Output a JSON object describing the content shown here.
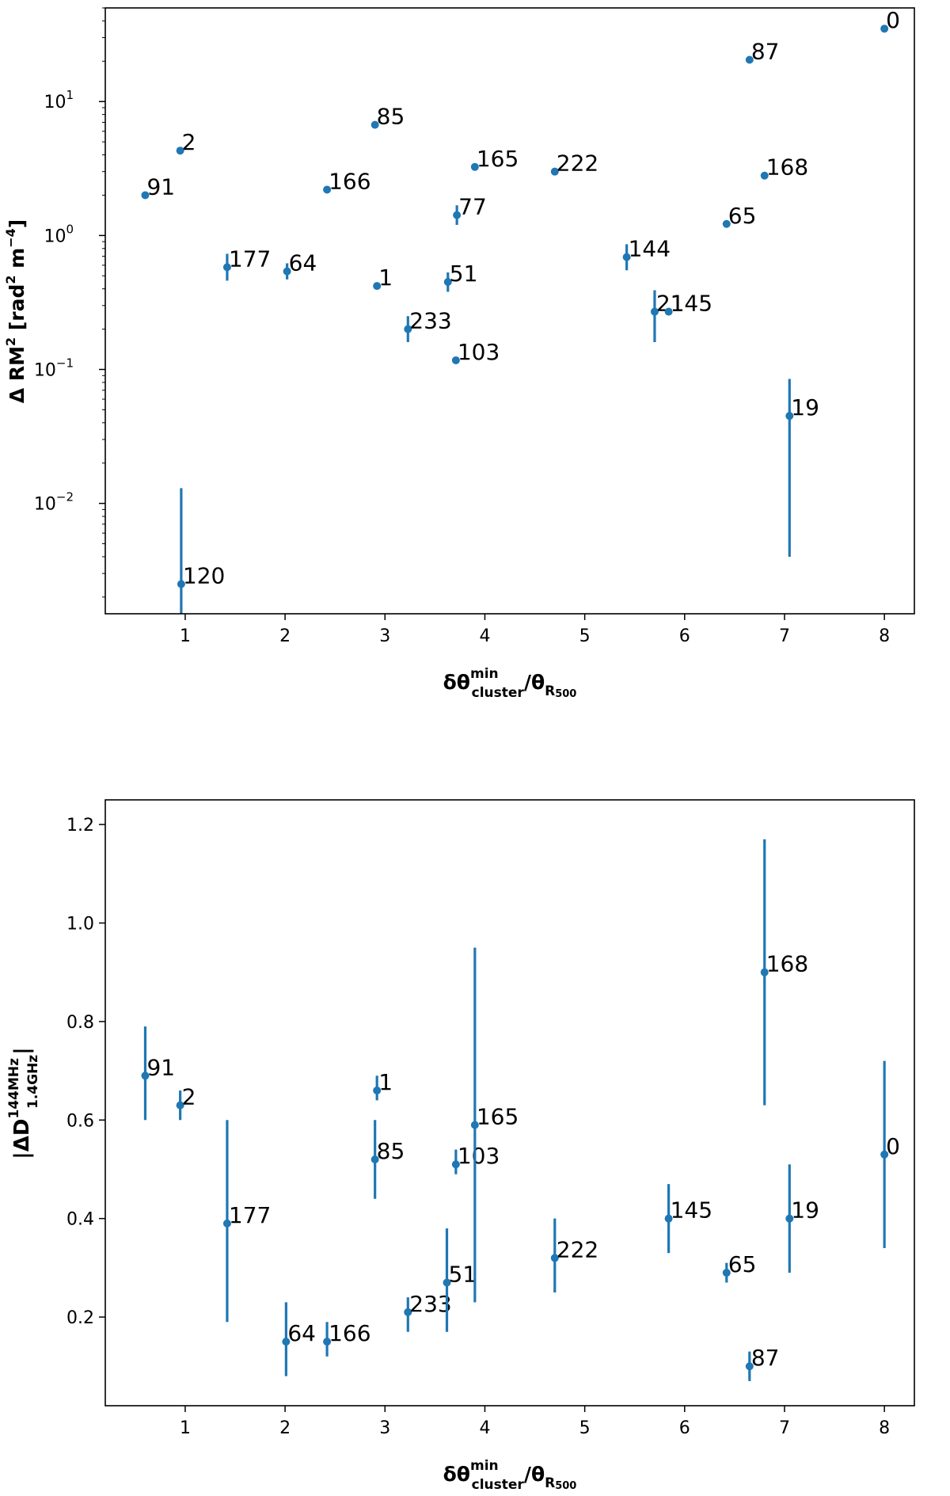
{
  "chart_data": [
    {
      "type": "scatter",
      "scale": "log",
      "title": "",
      "xlabel": {
        "main": "δθ",
        "sup": "min",
        "sub": "cluster",
        "slash": "/θ",
        "sub2": "R",
        "sub3": "500"
      },
      "ylabel": {
        "prefix": "Δ RM",
        "sup1": "2",
        "mid": " [rad",
        "sup2": "2",
        "mid2": " m",
        "sup3": "−4",
        "suffix": "]"
      },
      "xlim": [
        0.2,
        8.3
      ],
      "ylim": [
        0.0015,
        50
      ],
      "xticks": [
        {
          "value": 1,
          "label": "1"
        },
        {
          "value": 2,
          "label": "2"
        },
        {
          "value": 3,
          "label": "3"
        },
        {
          "value": 4,
          "label": "4"
        },
        {
          "value": 5,
          "label": "5"
        },
        {
          "value": 6,
          "label": "6"
        },
        {
          "value": 7,
          "label": "7"
        },
        {
          "value": 8,
          "label": "8"
        }
      ],
      "yticks": [
        {
          "value": 0.01,
          "base": "10",
          "exp": "−2"
        },
        {
          "value": 0.1,
          "base": "10",
          "exp": "−1"
        },
        {
          "value": 1,
          "base": "10",
          "exp": "0"
        },
        {
          "value": 10,
          "base": "10",
          "exp": "1"
        }
      ],
      "points": [
        {
          "label": "0",
          "x": 8.0,
          "y": 35,
          "lo": 35,
          "hi": 35
        },
        {
          "label": "87",
          "x": 6.65,
          "y": 20.5,
          "lo": 20.5,
          "hi": 20.5
        },
        {
          "label": "85",
          "x": 2.9,
          "y": 6.7,
          "lo": 6.7,
          "hi": 6.7
        },
        {
          "label": "2",
          "x": 0.95,
          "y": 4.3,
          "lo": 4.3,
          "hi": 4.3
        },
        {
          "label": "165",
          "x": 3.9,
          "y": 3.25,
          "lo": 3.25,
          "hi": 3.25
        },
        {
          "label": "222",
          "x": 4.7,
          "y": 3.0,
          "lo": 3.0,
          "hi": 3.0
        },
        {
          "label": "168",
          "x": 6.8,
          "y": 2.8,
          "lo": 2.8,
          "hi": 2.8
        },
        {
          "label": "166",
          "x": 2.42,
          "y": 2.2,
          "lo": 2.2,
          "hi": 2.2
        },
        {
          "label": "91",
          "x": 0.6,
          "y": 2.0,
          "lo": 2.0,
          "hi": 2.0
        },
        {
          "label": "77",
          "x": 3.72,
          "y": 1.42,
          "lo": 1.2,
          "hi": 1.68
        },
        {
          "label": "65",
          "x": 6.42,
          "y": 1.22,
          "lo": 1.22,
          "hi": 1.22
        },
        {
          "label": "144",
          "x": 5.42,
          "y": 0.69,
          "lo": 0.55,
          "hi": 0.86
        },
        {
          "label": "177",
          "x": 1.42,
          "y": 0.58,
          "lo": 0.46,
          "hi": 0.73
        },
        {
          "label": "64",
          "x": 2.02,
          "y": 0.54,
          "lo": 0.47,
          "hi": 0.62
        },
        {
          "label": "51",
          "x": 3.63,
          "y": 0.45,
          "lo": 0.38,
          "hi": 0.53
        },
        {
          "label": "1",
          "x": 2.92,
          "y": 0.42,
          "lo": 0.42,
          "hi": 0.42
        },
        {
          "label": "21",
          "x": 5.7,
          "y": 0.27,
          "lo": 0.16,
          "hi": 0.39
        },
        {
          "label": "145",
          "x": 5.84,
          "y": 0.27,
          "lo": 0.27,
          "hi": 0.27
        },
        {
          "label": "233",
          "x": 3.23,
          "y": 0.2,
          "lo": 0.16,
          "hi": 0.25
        },
        {
          "label": "103",
          "x": 3.71,
          "y": 0.117,
          "lo": 0.117,
          "hi": 0.117
        },
        {
          "label": "19",
          "x": 7.05,
          "y": 0.045,
          "lo": 0.004,
          "hi": 0.085
        },
        {
          "label": "120",
          "x": 0.96,
          "y": 0.0025,
          "lo": 0.0015,
          "hi": 0.013
        }
      ]
    },
    {
      "type": "scatter",
      "scale": "linear",
      "title": "",
      "xlabel": {
        "main": "δθ",
        "sup": "min",
        "sub": "cluster",
        "slash": "/θ",
        "sub2": "R",
        "sub3": "500"
      },
      "ylabel": {
        "prefix": "|ΔD",
        "sup": "144MHz",
        "sub": "1.4GHz",
        "suffix": "|"
      },
      "xlim": [
        0.2,
        8.3
      ],
      "ylim": [
        0.02,
        1.25
      ],
      "xticks": [
        {
          "value": 1,
          "label": "1"
        },
        {
          "value": 2,
          "label": "2"
        },
        {
          "value": 3,
          "label": "3"
        },
        {
          "value": 4,
          "label": "4"
        },
        {
          "value": 5,
          "label": "5"
        },
        {
          "value": 6,
          "label": "6"
        },
        {
          "value": 7,
          "label": "7"
        },
        {
          "value": 8,
          "label": "8"
        }
      ],
      "yticks": [
        {
          "value": 0.2,
          "label": "0.2"
        },
        {
          "value": 0.4,
          "label": "0.4"
        },
        {
          "value": 0.6,
          "label": "0.6"
        },
        {
          "value": 0.8,
          "label": "0.8"
        },
        {
          "value": 1.0,
          "label": "1.0"
        },
        {
          "value": 1.2,
          "label": "1.2"
        }
      ],
      "points": [
        {
          "label": "91",
          "x": 0.6,
          "y": 0.69,
          "lo": 0.6,
          "hi": 0.79
        },
        {
          "label": "2",
          "x": 0.95,
          "y": 0.63,
          "lo": 0.6,
          "hi": 0.66
        },
        {
          "label": "177",
          "x": 1.42,
          "y": 0.39,
          "lo": 0.19,
          "hi": 0.6
        },
        {
          "label": "64",
          "x": 2.01,
          "y": 0.15,
          "lo": 0.08,
          "hi": 0.23
        },
        {
          "label": "166",
          "x": 2.42,
          "y": 0.15,
          "lo": 0.12,
          "hi": 0.19
        },
        {
          "label": "1",
          "x": 2.92,
          "y": 0.66,
          "lo": 0.64,
          "hi": 0.69
        },
        {
          "label": "85",
          "x": 2.9,
          "y": 0.52,
          "lo": 0.44,
          "hi": 0.6
        },
        {
          "label": "233",
          "x": 3.23,
          "y": 0.21,
          "lo": 0.17,
          "hi": 0.24
        },
        {
          "label": "51",
          "x": 3.62,
          "y": 0.27,
          "lo": 0.17,
          "hi": 0.38
        },
        {
          "label": "103",
          "x": 3.71,
          "y": 0.51,
          "lo": 0.49,
          "hi": 0.54
        },
        {
          "label": "165",
          "x": 3.9,
          "y": 0.59,
          "lo": 0.23,
          "hi": 0.95
        },
        {
          "label": "222",
          "x": 4.7,
          "y": 0.32,
          "lo": 0.25,
          "hi": 0.4
        },
        {
          "label": "145",
          "x": 5.84,
          "y": 0.4,
          "lo": 0.33,
          "hi": 0.47
        },
        {
          "label": "65",
          "x": 6.42,
          "y": 0.29,
          "lo": 0.27,
          "hi": 0.31
        },
        {
          "label": "87",
          "x": 6.65,
          "y": 0.1,
          "lo": 0.07,
          "hi": 0.13
        },
        {
          "label": "168",
          "x": 6.8,
          "y": 0.9,
          "lo": 0.63,
          "hi": 1.17
        },
        {
          "label": "19",
          "x": 7.05,
          "y": 0.4,
          "lo": 0.29,
          "hi": 0.51
        },
        {
          "label": "0",
          "x": 8.0,
          "y": 0.53,
          "lo": 0.34,
          "hi": 0.72
        }
      ]
    }
  ],
  "colors": {
    "marker": "#1f77b4",
    "axis": "#000000"
  }
}
